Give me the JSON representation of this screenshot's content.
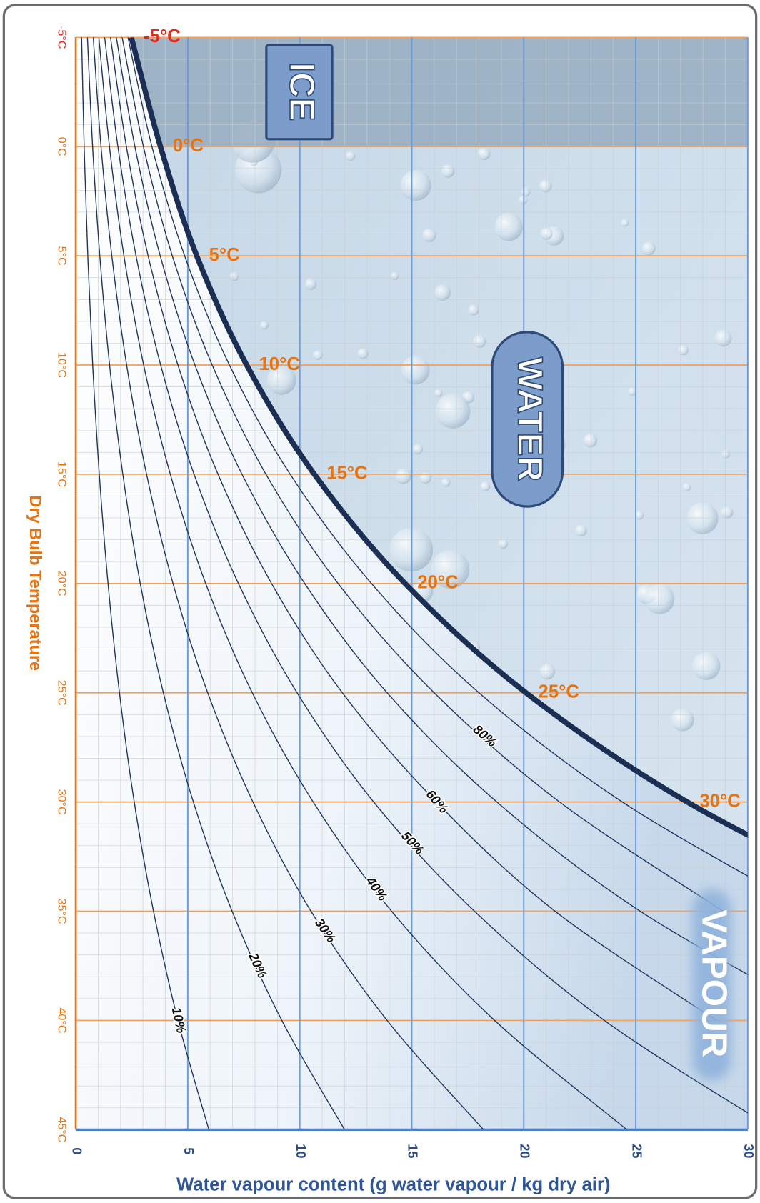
{
  "chart_data": {
    "type": "psychrometric",
    "ylabel": "Dry Bulb Temperature",
    "xlabel": "Water vapour content (g water vapour / kg dry air)",
    "xlim": [
      0,
      30
    ],
    "xticks": [
      0,
      5,
      10,
      15,
      20,
      25,
      30
    ],
    "ylim": [
      -5,
      45
    ],
    "yticks": [
      {
        "value": -5,
        "label": "-5°C"
      },
      {
        "value": 0,
        "label": "0°C"
      },
      {
        "value": 5,
        "label": "5°C"
      },
      {
        "value": 10,
        "label": "10°C"
      },
      {
        "value": 15,
        "label": "15°C"
      },
      {
        "value": 20,
        "label": "20°C"
      },
      {
        "value": 25,
        "label": "25°C"
      },
      {
        "value": 30,
        "label": "30°C"
      },
      {
        "value": 35,
        "label": "35°C"
      },
      {
        "value": 40,
        "label": "40°C"
      },
      {
        "value": 45,
        "label": "45°C"
      }
    ],
    "grid": true,
    "minor_grid_step": 1,
    "temperatures": [
      -5,
      0,
      5,
      10,
      15,
      20,
      25,
      30,
      35,
      40,
      45
    ],
    "saturation": {
      "color": "#1b2f55",
      "temperatures": [
        -5,
        0,
        5,
        10,
        15,
        20,
        25,
        30,
        35
      ],
      "values": [
        2.48,
        3.78,
        5.4,
        7.63,
        10.65,
        14.7,
        20.1,
        27.3,
        36.8
      ],
      "point_labels": [
        "-5°C",
        "0°C",
        "5°C",
        "10°C",
        "15°C",
        "20°C",
        "25°C",
        "30°C",
        null
      ]
    },
    "series": [
      {
        "name": "10%",
        "color": "#1f3560",
        "values": [
          0.26,
          0.375,
          0.536,
          0.755,
          1.05,
          1.44,
          1.95,
          2.61,
          3.47,
          4.56,
          5.94
        ]
      },
      {
        "name": "20%",
        "color": "#1f3560",
        "values": [
          0.52,
          0.751,
          1.073,
          1.51,
          2.1,
          2.88,
          3.91,
          5.25,
          6.98,
          9.2,
          12.0
        ]
      },
      {
        "name": "30%",
        "color": "#1f3560",
        "values": [
          0.78,
          1.127,
          1.61,
          2.27,
          3.16,
          4.34,
          5.89,
          7.91,
          10.5,
          13.9,
          18.2
        ]
      },
      {
        "name": "40%",
        "color": "#1f3560",
        "values": [
          1.03,
          1.504,
          2.15,
          3.03,
          4.22,
          5.8,
          7.88,
          10.6,
          14.1,
          18.7,
          24.6
        ]
      },
      {
        "name": "50%",
        "color": "#1f3560",
        "values": [
          1.29,
          1.88,
          2.69,
          3.79,
          5.28,
          7.26,
          9.88,
          13.3,
          17.8,
          23.6,
          31.2
        ]
      },
      {
        "name": "60%",
        "color": "#1f3560",
        "values": [
          1.55,
          2.26,
          3.23,
          4.56,
          6.35,
          8.74,
          11.9,
          16.1,
          21.4,
          28.6,
          null
        ]
      },
      {
        "name": null,
        "color": "#1f3560",
        "values": [
          1.81,
          2.64,
          3.77,
          5.32,
          7.42,
          10.22,
          13.9,
          18.8,
          25.2,
          33.7,
          null
        ]
      },
      {
        "name": "80%",
        "color": "#1f3560",
        "values": [
          2.07,
          3.02,
          4.31,
          6.09,
          8.49,
          11.71,
          16.0,
          21.6,
          28.9,
          null,
          null
        ]
      },
      {
        "name": null,
        "color": "#1f3560",
        "values": [
          2.33,
          3.4,
          4.86,
          6.86,
          9.57,
          13.2,
          18.0,
          24.4,
          32.8,
          null,
          null
        ]
      }
    ],
    "regions": [
      "ICE",
      "WATER",
      "VAPOUR"
    ]
  }
}
